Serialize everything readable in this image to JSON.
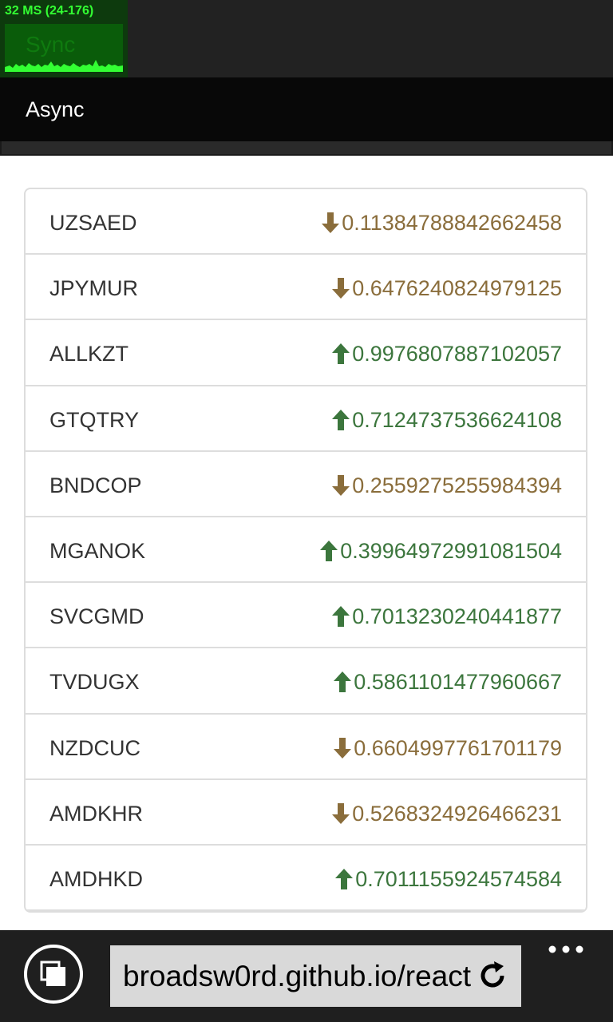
{
  "perf_monitor": {
    "label": "32 MS (24-176)",
    "ghost_label": "Sync"
  },
  "navbar": {
    "title": "Async"
  },
  "rates": [
    {
      "name": "UZSAED",
      "value": "0.11384788842662458",
      "direction": "down",
      "icon": "arrow-down-icon"
    },
    {
      "name": "JPYMUR",
      "value": "0.6476240824979125",
      "direction": "down",
      "icon": "arrow-down-icon"
    },
    {
      "name": "ALLKZT",
      "value": "0.9976807887102057",
      "direction": "up",
      "icon": "arrow-up-icon"
    },
    {
      "name": "GTQTRY",
      "value": "0.7124737536624108",
      "direction": "up",
      "icon": "arrow-up-icon"
    },
    {
      "name": "BNDCOP",
      "value": "0.2559275255984394",
      "direction": "down",
      "icon": "arrow-down-icon"
    },
    {
      "name": "MGANOK",
      "value": "0.39964972991081504",
      "direction": "up",
      "icon": "arrow-up-icon"
    },
    {
      "name": "SVCGMD",
      "value": "0.7013230240441877",
      "direction": "up",
      "icon": "arrow-up-icon"
    },
    {
      "name": "TVDUGX",
      "value": "0.5861101477960667",
      "direction": "up",
      "icon": "arrow-up-icon"
    },
    {
      "name": "NZDCUC",
      "value": "0.6604997761701179",
      "direction": "down",
      "icon": "arrow-down-icon"
    },
    {
      "name": "AMDKHR",
      "value": "0.5268324926466231",
      "direction": "down",
      "icon": "arrow-down-icon"
    },
    {
      "name": "AMDHKD",
      "value": "0.7011155924574584",
      "direction": "up",
      "icon": "arrow-up-icon"
    }
  ],
  "colors": {
    "down": "#8a6d3b",
    "up": "#3c763d"
  },
  "browser": {
    "url": "broadsw0rd.github.io/react",
    "tabs_icon": "tabs-icon",
    "refresh_icon": "refresh-icon",
    "more_icon": "more-icon"
  }
}
